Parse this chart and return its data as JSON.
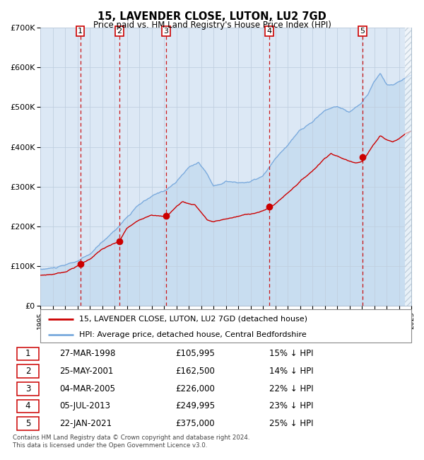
{
  "title": "15, LAVENDER CLOSE, LUTON, LU2 7GD",
  "subtitle": "Price paid vs. HM Land Registry's House Price Index (HPI)",
  "x_start_year": 1995,
  "x_end_year": 2025,
  "y_min": 0,
  "y_max": 700000,
  "y_ticks": [
    0,
    100000,
    200000,
    300000,
    400000,
    500000,
    600000,
    700000
  ],
  "y_tick_labels": [
    "£0",
    "£100K",
    "£200K",
    "£300K",
    "£400K",
    "£500K",
    "£600K",
    "£700K"
  ],
  "sales": [
    {
      "num": 1,
      "year": 1998.23,
      "price": 105995
    },
    {
      "num": 2,
      "year": 2001.4,
      "price": 162500
    },
    {
      "num": 3,
      "year": 2005.17,
      "price": 226000
    },
    {
      "num": 4,
      "year": 2013.51,
      "price": 249995
    },
    {
      "num": 5,
      "year": 2021.06,
      "price": 375000
    }
  ],
  "red_line_color": "#cc0000",
  "blue_line_color": "#7aaadd",
  "blue_fill_color": "#c8ddf0",
  "grid_color": "#c0cfe0",
  "plot_bg_color": "#dce8f5",
  "dashed_line_color": "#cc0000",
  "footnote": "Contains HM Land Registry data © Crown copyright and database right 2024.\nThis data is licensed under the Open Government Licence v3.0.",
  "legend_label_red": "15, LAVENDER CLOSE, LUTON, LU2 7GD (detached house)",
  "legend_label_blue": "HPI: Average price, detached house, Central Bedfordshire",
  "table_rows": [
    [
      "1",
      "27-MAR-1998",
      "£105,995",
      "15% ↓ HPI"
    ],
    [
      "2",
      "25-MAY-2001",
      "£162,500",
      "14% ↓ HPI"
    ],
    [
      "3",
      "04-MAR-2005",
      "£226,000",
      "22% ↓ HPI"
    ],
    [
      "4",
      "05-JUL-2013",
      "£249,995",
      "23% ↓ HPI"
    ],
    [
      "5",
      "22-JAN-2021",
      "£375,000",
      "25% ↓ HPI"
    ]
  ]
}
